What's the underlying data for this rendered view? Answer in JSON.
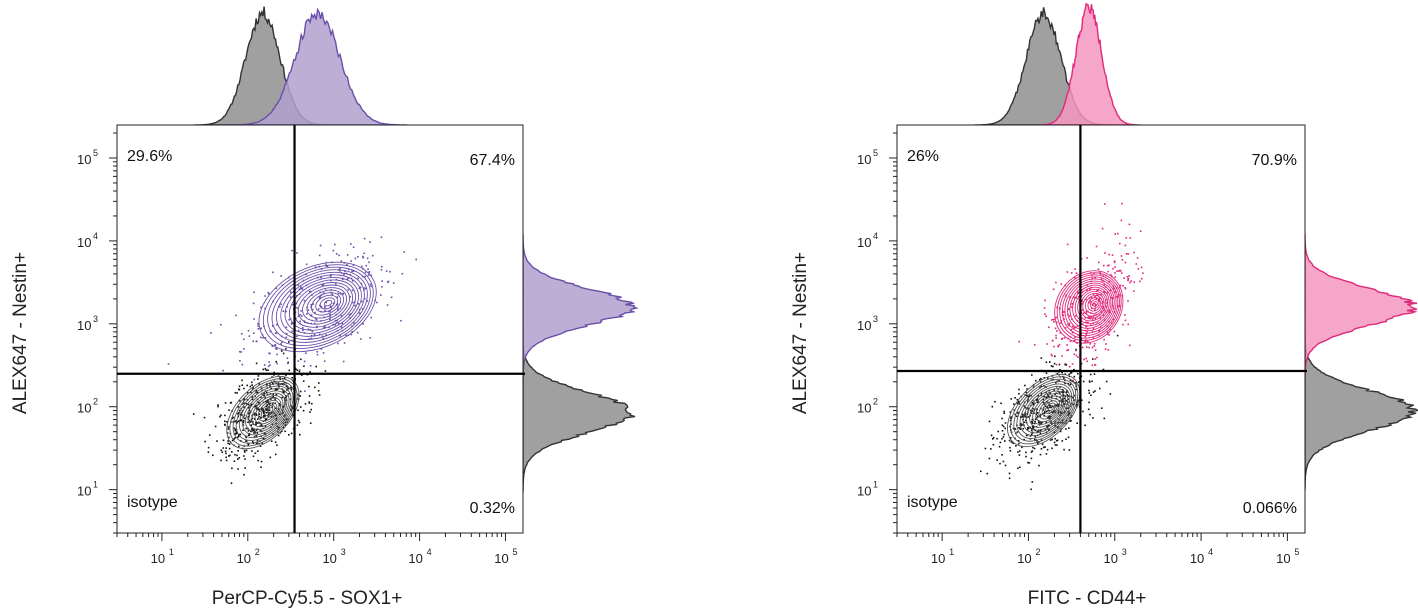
{
  "chart_data": [
    {
      "type": "scatter",
      "subtype": "flow-cytometry-contour-with-marginal-histograms",
      "xlabel": "PerCP-Cy5.5 - SOX1+",
      "ylabel": "ALEX647 - Nestin+",
      "x_scale": "log",
      "y_scale": "log",
      "xlim": [
        3,
        160000
      ],
      "ylim": [
        3,
        250000
      ],
      "x_ticks": [
        "10",
        "10",
        "10",
        "10",
        "10"
      ],
      "x_tick_exponents": [
        "1",
        "2",
        "3",
        "4",
        "5"
      ],
      "x_tick_values": [
        10,
        100,
        1000,
        10000,
        100000
      ],
      "y_ticks": [
        "10",
        "10",
        "10",
        "10",
        "10"
      ],
      "y_tick_exponents": [
        "1",
        "2",
        "3",
        "4",
        "5"
      ],
      "y_tick_values": [
        10,
        100,
        1000,
        10000,
        100000
      ],
      "gate_x": 350,
      "gate_y": 250,
      "quadrant_labels": {
        "top_left": "29.6%",
        "top_right": "67.4%",
        "bottom_right": "0.32%",
        "bottom_left": "isotype"
      },
      "series": [
        {
          "role": "sample",
          "color": "#6a4fa8",
          "fill": "#b1a0cf",
          "center": [
            650,
            1600
          ]
        },
        {
          "role": "isotype",
          "color": "#333333",
          "fill": "#8f8f8f",
          "center": [
            150,
            85
          ]
        }
      ]
    },
    {
      "type": "scatter",
      "subtype": "flow-cytometry-contour-with-marginal-histograms",
      "xlabel": "FITC - CD44+",
      "ylabel": "ALEX647 - Nestin+",
      "x_scale": "log",
      "y_scale": "log",
      "xlim": [
        3,
        160000
      ],
      "ylim": [
        3,
        250000
      ],
      "x_ticks": [
        "10",
        "10",
        "10",
        "10",
        "10"
      ],
      "x_tick_exponents": [
        "1",
        "2",
        "3",
        "4",
        "5"
      ],
      "x_tick_values": [
        10,
        100,
        1000,
        10000,
        100000
      ],
      "y_ticks": [
        "10",
        "10",
        "10",
        "10",
        "10"
      ],
      "y_tick_exponents": [
        "1",
        "2",
        "3",
        "4",
        "5"
      ],
      "y_tick_values": [
        10,
        100,
        1000,
        10000,
        100000
      ],
      "gate_x": 400,
      "gate_y": 270,
      "quadrant_labels": {
        "top_left": "26%",
        "top_right": "70.9%",
        "bottom_right": "0.066%",
        "bottom_left": "isotype"
      },
      "series": [
        {
          "role": "sample",
          "color": "#e0297c",
          "fill": "#f497be",
          "center": [
            500,
            1600
          ]
        },
        {
          "role": "isotype",
          "color": "#333333",
          "fill": "#8f8f8f",
          "center": [
            150,
            90
          ]
        }
      ]
    }
  ]
}
